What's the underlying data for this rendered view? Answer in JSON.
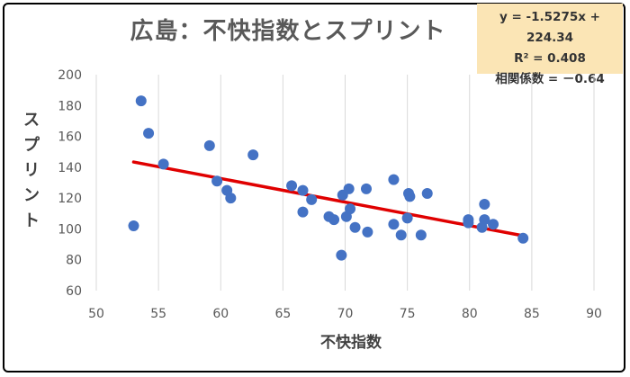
{
  "chart_data": {
    "type": "scatter",
    "title": "広島：不快指数とスプリント",
    "xlabel": "不快指数",
    "ylabel": "スプリント",
    "xlim": [
      50,
      90
    ],
    "ylim": [
      60,
      200
    ],
    "xticks": [
      50,
      55,
      60,
      65,
      70,
      75,
      80,
      85,
      90
    ],
    "yticks": [
      60,
      80,
      100,
      120,
      140,
      160,
      180,
      200
    ],
    "grid": "vertical",
    "marker_color": "#4472c4",
    "trend_color": "#e00000",
    "trendline": {
      "slope": -1.5275,
      "intercept": 224.34,
      "x_range": [
        53,
        84.3
      ]
    },
    "annotations": [
      "y = -1.5275x + 224.34",
      "R² = 0.408",
      "相関係数 = －0.64"
    ],
    "points": [
      {
        "x": 53.6,
        "y": 183
      },
      {
        "x": 54.2,
        "y": 162
      },
      {
        "x": 55.4,
        "y": 142
      },
      {
        "x": 53.0,
        "y": 102
      },
      {
        "x": 59.1,
        "y": 154
      },
      {
        "x": 59.7,
        "y": 131
      },
      {
        "x": 60.5,
        "y": 125
      },
      {
        "x": 60.8,
        "y": 120
      },
      {
        "x": 62.6,
        "y": 148
      },
      {
        "x": 65.7,
        "y": 128
      },
      {
        "x": 66.6,
        "y": 125
      },
      {
        "x": 66.6,
        "y": 111
      },
      {
        "x": 67.3,
        "y": 119
      },
      {
        "x": 68.7,
        "y": 108
      },
      {
        "x": 69.1,
        "y": 106
      },
      {
        "x": 69.8,
        "y": 122
      },
      {
        "x": 70.1,
        "y": 108
      },
      {
        "x": 70.3,
        "y": 126
      },
      {
        "x": 70.4,
        "y": 113
      },
      {
        "x": 70.8,
        "y": 101
      },
      {
        "x": 71.7,
        "y": 126
      },
      {
        "x": 71.8,
        "y": 98
      },
      {
        "x": 69.7,
        "y": 83
      },
      {
        "x": 73.9,
        "y": 132
      },
      {
        "x": 73.9,
        "y": 103
      },
      {
        "x": 74.5,
        "y": 96
      },
      {
        "x": 75.0,
        "y": 107
      },
      {
        "x": 75.1,
        "y": 123
      },
      {
        "x": 75.2,
        "y": 121
      },
      {
        "x": 76.1,
        "y": 96
      },
      {
        "x": 76.6,
        "y": 123
      },
      {
        "x": 79.9,
        "y": 106
      },
      {
        "x": 79.9,
        "y": 104
      },
      {
        "x": 81.0,
        "y": 101
      },
      {
        "x": 81.2,
        "y": 116
      },
      {
        "x": 81.2,
        "y": 106
      },
      {
        "x": 81.9,
        "y": 103
      },
      {
        "x": 84.3,
        "y": 94
      }
    ]
  }
}
